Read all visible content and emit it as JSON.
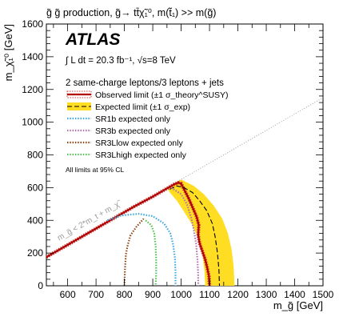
{
  "chart_data": {
    "type": "line",
    "title": "g̃ g̃ production, g̃→ tt̄χ̃₁⁰, m(t̃₁) >> m(g̃)",
    "xlabel": "m_g̃ [GeV]",
    "ylabel": "m_χ̃₁⁰ [GeV]",
    "xlim": [
      525,
      1500
    ],
    "ylim": [
      0,
      1600
    ],
    "xticks": [
      600,
      700,
      800,
      900,
      1000,
      1100,
      1200,
      1300,
      1400,
      1500
    ],
    "yticks": [
      0,
      200,
      400,
      600,
      800,
      1000,
      1200,
      1400,
      1600
    ],
    "experiment": "ATLAS",
    "luminosity": "∫ L dt = 20.3 fb⁻¹, √s=8 TeV",
    "selection": "2 same-charge leptons/3 leptons + jets",
    "note": "All limits at 95% CL",
    "diagonal_label": "m_g̃ < 2*m_t + m_χ̃",
    "diagonal_line": [
      [
        525,
        175
      ],
      [
        1500,
        1150
      ]
    ],
    "series": [
      {
        "name": "Observed limit (±1 σ_theory^SUSY)",
        "color": "#b00000",
        "style": "solid",
        "points": [
          [
            525,
            175
          ],
          [
            700,
            350
          ],
          [
            830,
            480
          ],
          [
            900,
            545
          ],
          [
            950,
            595
          ],
          [
            975,
            620
          ],
          [
            990,
            630
          ],
          [
            1000,
            625
          ],
          [
            1010,
            590
          ],
          [
            1025,
            540
          ],
          [
            1040,
            480
          ],
          [
            1055,
            420
          ],
          [
            1062,
            370
          ],
          [
            1060,
            310
          ],
          [
            1065,
            260
          ],
          [
            1075,
            210
          ],
          [
            1085,
            160
          ],
          [
            1092,
            110
          ],
          [
            1098,
            60
          ],
          [
            1100,
            0
          ]
        ]
      },
      {
        "name": "Expected limit (±1 σ_exp)",
        "color": "#000000",
        "style": "dashed",
        "points": [
          [
            960,
            590
          ],
          [
            985,
            610
          ],
          [
            1010,
            600
          ],
          [
            1040,
            570
          ],
          [
            1065,
            520
          ],
          [
            1090,
            460
          ],
          [
            1110,
            380
          ],
          [
            1120,
            300
          ],
          [
            1128,
            200
          ],
          [
            1133,
            100
          ],
          [
            1135,
            0
          ]
        ]
      },
      {
        "name": "SR1b expected only",
        "color": "#3ba7e0",
        "style": "dotted",
        "points": [
          [
            740,
            400
          ],
          [
            790,
            430
          ],
          [
            850,
            440
          ],
          [
            900,
            425
          ],
          [
            940,
            380
          ],
          [
            962,
            320
          ],
          [
            972,
            250
          ],
          [
            978,
            170
          ],
          [
            980,
            80
          ],
          [
            980,
            0
          ]
        ]
      },
      {
        "name": "SR3b expected only",
        "color": "#b06fa6",
        "style": "dotted",
        "points": [
          [
            965,
            600
          ],
          [
            1000,
            560
          ],
          [
            1020,
            500
          ],
          [
            1035,
            420
          ],
          [
            1045,
            340
          ],
          [
            1053,
            250
          ],
          [
            1058,
            150
          ],
          [
            1060,
            60
          ],
          [
            1060,
            0
          ]
        ]
      },
      {
        "name": "SR3Llow expected only",
        "color": "#8b4513",
        "style": "dotted",
        "points": [
          [
            800,
            0
          ],
          [
            802,
            100
          ],
          [
            805,
            190
          ],
          [
            812,
            250
          ],
          [
            822,
            310
          ],
          [
            842,
            360
          ],
          [
            860,
            395
          ],
          [
            868,
            410
          ]
        ]
      },
      {
        "name": "SR3Lhigh expected only",
        "color": "#4fc04f",
        "style": "dotted",
        "points": [
          [
            875,
            400
          ],
          [
            895,
            370
          ],
          [
            905,
            320
          ],
          [
            910,
            250
          ],
          [
            912,
            160
          ],
          [
            912,
            70
          ],
          [
            910,
            0
          ]
        ]
      }
    ],
    "expected_band": [
      [
        950,
        600
      ],
      [
        1000,
        650
      ],
      [
        1045,
        610
      ],
      [
        1080,
        560
      ],
      [
        1115,
        490
      ],
      [
        1145,
        410
      ],
      [
        1165,
        320
      ],
      [
        1178,
        220
      ],
      [
        1185,
        120
      ],
      [
        1188,
        0
      ],
      [
        1085,
        0
      ],
      [
        1082,
        90
      ],
      [
        1075,
        190
      ],
      [
        1060,
        290
      ],
      [
        1040,
        370
      ],
      [
        1015,
        440
      ],
      [
        985,
        520
      ],
      [
        960,
        570
      ]
    ],
    "expected_band_color": "#ffdd22",
    "legend_placement": "top-left",
    "grid": false
  }
}
